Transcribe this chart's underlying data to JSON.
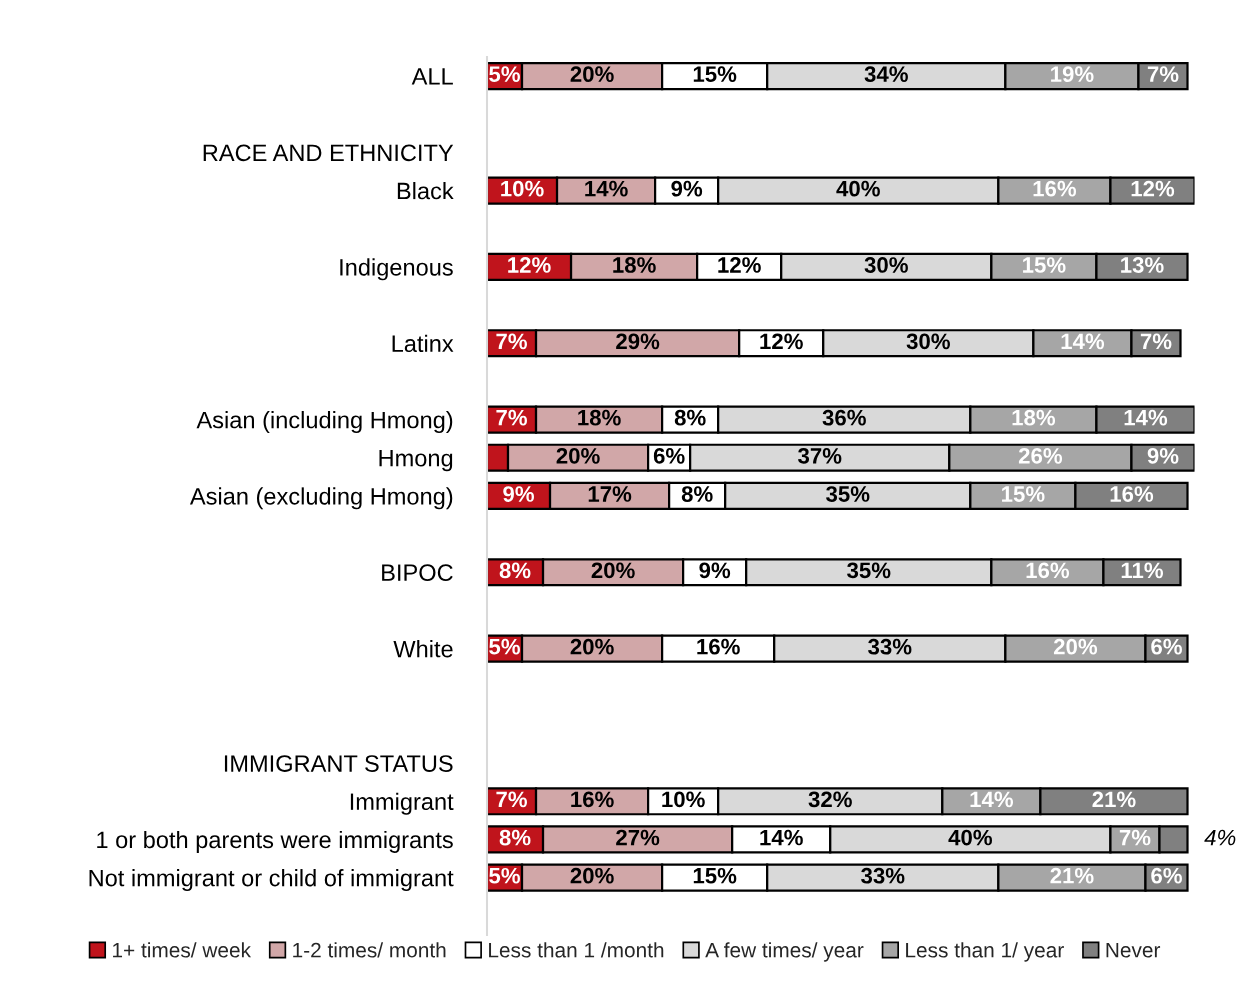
{
  "chart_data": {
    "type": "bar",
    "orientation": "horizontal",
    "stacked": true,
    "legend": "bottom",
    "tick_labels": "y",
    "grid": false,
    "categories": [
      "ALL",
      null,
      "RACE AND ETHNICITY",
      "Black",
      null,
      "Indigenous",
      null,
      "Latinx",
      null,
      "Asian (including Hmong)",
      "Hmong",
      "Asian (excluding Hmong)",
      null,
      "BIPOC",
      null,
      "White",
      null,
      null,
      "IMMIGRANT STATUS",
      "Immigrant",
      "1 or both parents were immigrants",
      "Not immigrant or child of immigrant"
    ],
    "series": [
      {
        "name": "1+ times/ week",
        "color": "#c0141c",
        "values": [
          5,
          null,
          null,
          10,
          null,
          12,
          null,
          7,
          null,
          7,
          3,
          9,
          null,
          8,
          null,
          5,
          null,
          null,
          null,
          7,
          8,
          5
        ],
        "value_labels": [
          "5%",
          null,
          null,
          "10%",
          null,
          "12%",
          null,
          "7%",
          null,
          "7%",
          null,
          "9%",
          null,
          "8%",
          null,
          "5%",
          null,
          null,
          null,
          "7%",
          "8%",
          "5%"
        ]
      },
      {
        "name": "1-2 times/ month",
        "color": "#d1a7a8",
        "values": [
          20,
          null,
          null,
          14,
          null,
          18,
          null,
          29,
          null,
          18,
          20,
          17,
          null,
          20,
          null,
          20,
          null,
          null,
          null,
          16,
          27,
          20
        ],
        "value_labels": [
          "20%",
          null,
          null,
          "14%",
          null,
          "18%",
          null,
          "29%",
          null,
          "18%",
          "20%",
          "17%",
          null,
          "20%",
          null,
          "20%",
          null,
          null,
          null,
          "16%",
          "27%",
          "20%"
        ]
      },
      {
        "name": "Less than 1 /month",
        "color": "#ffffff",
        "values": [
          15,
          null,
          null,
          9,
          null,
          12,
          null,
          12,
          null,
          8,
          6,
          8,
          null,
          9,
          null,
          16,
          null,
          null,
          null,
          10,
          14,
          15
        ],
        "value_labels": [
          "15%",
          null,
          null,
          "9%",
          null,
          "12%",
          null,
          "12%",
          null,
          "8%",
          "6%",
          "8%",
          null,
          "9%",
          null,
          "16%",
          null,
          null,
          null,
          "10%",
          "14%",
          "15%"
        ]
      },
      {
        "name": "A few times/ year",
        "color": "#d9d9d9",
        "values": [
          34,
          null,
          null,
          40,
          null,
          30,
          null,
          30,
          null,
          36,
          37,
          35,
          null,
          35,
          null,
          33,
          null,
          null,
          null,
          32,
          40,
          33
        ],
        "value_labels": [
          "34%",
          null,
          null,
          "40%",
          null,
          "30%",
          null,
          "30%",
          null,
          "36%",
          "37%",
          "35%",
          null,
          "35%",
          null,
          "33%",
          null,
          null,
          null,
          "32%",
          "40%",
          "33%"
        ]
      },
      {
        "name": "Less than 1/ year",
        "color": "#a6a6a6",
        "values": [
          19,
          null,
          null,
          16,
          null,
          15,
          null,
          14,
          null,
          18,
          26,
          15,
          null,
          16,
          null,
          20,
          null,
          null,
          null,
          14,
          7,
          21
        ],
        "value_labels": [
          "19%",
          null,
          null,
          "16%",
          null,
          "15%",
          null,
          "14%",
          null,
          "18%",
          "26%",
          "15%",
          null,
          "16%",
          null,
          "20%",
          null,
          null,
          null,
          "14%",
          "7%",
          "21%"
        ]
      },
      {
        "name": "Never",
        "color": "#808080",
        "values": [
          7,
          null,
          null,
          12,
          null,
          13,
          null,
          7,
          null,
          14,
          9,
          16,
          null,
          11,
          null,
          6,
          null,
          null,
          null,
          21,
          4,
          6
        ],
        "value_labels": [
          "7%",
          null,
          null,
          "12%",
          null,
          "13%",
          null,
          "7%",
          null,
          "14%",
          "9%",
          "16%",
          null,
          "11%",
          null,
          "6%",
          null,
          null,
          null,
          "21%",
          "4%",
          "6%"
        ]
      }
    ]
  }
}
